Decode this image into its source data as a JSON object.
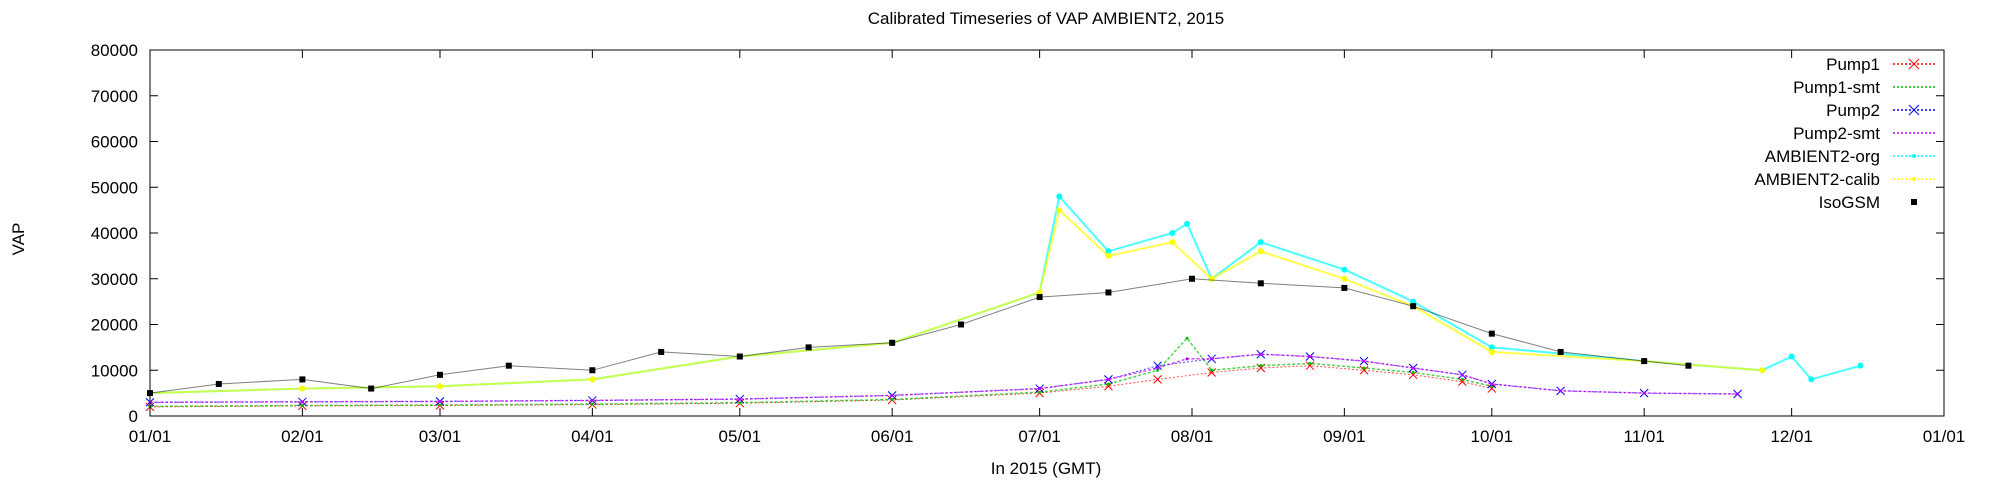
{
  "chart_data": {
    "type": "scatter",
    "title": "Calibrated Timeseries of VAP AMBIENT2, 2015",
    "xlabel": "In 2015 (GMT)",
    "ylabel": "VAP",
    "xlim": [
      "2015-01-01",
      "2016-01-01"
    ],
    "ylim": [
      0,
      80000
    ],
    "yticks": [
      0,
      10000,
      20000,
      30000,
      40000,
      50000,
      60000,
      70000,
      80000
    ],
    "xticks": [
      "2015-01-01",
      "2015-02-01",
      "2015-03-01",
      "2015-04-01",
      "2015-05-01",
      "2015-06-01",
      "2015-07-01",
      "2015-08-01",
      "2015-09-01",
      "2015-10-01",
      "2015-11-01",
      "2015-12-01",
      "2016-01-01"
    ],
    "xtick_labels": [
      "01/01",
      "02/01",
      "03/01",
      "04/01",
      "05/01",
      "06/01",
      "07/01",
      "08/01",
      "09/01",
      "10/01",
      "11/01",
      "12/01",
      "01/01"
    ],
    "grid": false,
    "legend_position": "top-right",
    "series": [
      {
        "name": "Pump1",
        "color": "#ff0000",
        "marker": "x",
        "x": [
          "2015-01-01",
          "2015-02-01",
          "2015-03-01",
          "2015-04-01",
          "2015-05-01",
          "2015-06-01",
          "2015-07-01",
          "2015-07-15",
          "2015-07-25",
          "2015-08-05",
          "2015-08-15",
          "2015-08-25",
          "2015-09-05",
          "2015-09-15",
          "2015-09-25",
          "2015-10-01"
        ],
        "y": [
          2000,
          2200,
          2300,
          2500,
          2800,
          3500,
          5000,
          6500,
          8000,
          9500,
          10500,
          11000,
          10000,
          9000,
          7500,
          6000
        ]
      },
      {
        "name": "Pump1-smt",
        "color": "#00c000",
        "marker": "line",
        "x": [
          "2015-01-01",
          "2015-02-01",
          "2015-03-01",
          "2015-04-01",
          "2015-05-01",
          "2015-06-01",
          "2015-07-01",
          "2015-07-15",
          "2015-07-25",
          "2015-07-31",
          "2015-08-05",
          "2015-08-15",
          "2015-08-25",
          "2015-09-05",
          "2015-09-15",
          "2015-09-25",
          "2015-10-01"
        ],
        "y": [
          2100,
          2300,
          2400,
          2600,
          2900,
          3600,
          5200,
          7000,
          10000,
          17000,
          10000,
          11000,
          11500,
          10500,
          9500,
          8000,
          6500
        ]
      },
      {
        "name": "Pump2",
        "color": "#0000ff",
        "marker": "x",
        "x": [
          "2015-01-01",
          "2015-02-01",
          "2015-03-01",
          "2015-04-01",
          "2015-05-01",
          "2015-06-01",
          "2015-07-01",
          "2015-07-15",
          "2015-07-25",
          "2015-08-05",
          "2015-08-15",
          "2015-08-25",
          "2015-09-05",
          "2015-09-15",
          "2015-09-25",
          "2015-10-01",
          "2015-10-15",
          "2015-11-01",
          "2015-11-20"
        ],
        "y": [
          3000,
          3100,
          3200,
          3400,
          3700,
          4500,
          6000,
          8000,
          11000,
          12500,
          13500,
          13000,
          12000,
          10500,
          9000,
          7000,
          5500,
          5000,
          4800
        ]
      },
      {
        "name": "Pump2-smt",
        "color": "#c000ff",
        "marker": "line",
        "x": [
          "2015-01-01",
          "2015-02-01",
          "2015-03-01",
          "2015-04-01",
          "2015-05-01",
          "2015-06-01",
          "2015-07-01",
          "2015-07-15",
          "2015-07-25",
          "2015-07-31",
          "2015-08-05",
          "2015-08-15",
          "2015-08-25",
          "2015-09-05",
          "2015-09-15",
          "2015-09-25",
          "2015-10-01",
          "2015-10-15",
          "2015-11-01",
          "2015-11-20"
        ],
        "y": [
          3000,
          3100,
          3200,
          3400,
          3700,
          4500,
          6000,
          8000,
          10500,
          12500,
          12500,
          13500,
          13000,
          12000,
          10500,
          9000,
          7000,
          5500,
          5000,
          4800
        ]
      },
      {
        "name": "AMBIENT2-org",
        "color": "#00ffff",
        "marker": "dot",
        "x": [
          "2015-01-01",
          "2015-02-01",
          "2015-03-01",
          "2015-04-01",
          "2015-05-01",
          "2015-06-01",
          "2015-07-01",
          "2015-07-05",
          "2015-07-15",
          "2015-07-28",
          "2015-07-31",
          "2015-08-05",
          "2015-08-15",
          "2015-09-01",
          "2015-09-15",
          "2015-10-01",
          "2015-11-01",
          "2015-11-25",
          "2015-12-01",
          "2015-12-05",
          "2015-12-15"
        ],
        "y": [
          5000,
          6000,
          6500,
          8000,
          13000,
          16000,
          27000,
          48000,
          36000,
          40000,
          42000,
          30000,
          38000,
          32000,
          25000,
          15000,
          12000,
          10000,
          13000,
          8000,
          11000
        ]
      },
      {
        "name": "AMBIENT2-calib",
        "color": "#ffff00",
        "marker": "dot",
        "x": [
          "2015-01-01",
          "2015-02-01",
          "2015-03-01",
          "2015-04-01",
          "2015-05-01",
          "2015-06-01",
          "2015-07-01",
          "2015-07-05",
          "2015-07-15",
          "2015-07-28",
          "2015-08-05",
          "2015-08-15",
          "2015-09-01",
          "2015-09-15",
          "2015-10-01",
          "2015-11-01",
          "2015-11-25"
        ],
        "y": [
          5000,
          6000,
          6500,
          8000,
          13000,
          16000,
          27000,
          45000,
          35000,
          38000,
          30000,
          36000,
          30000,
          24000,
          14000,
          12000,
          10000
        ]
      },
      {
        "name": "IsoGSM",
        "color": "#000000",
        "marker": "square",
        "x": [
          "2015-01-01",
          "2015-01-15",
          "2015-02-01",
          "2015-02-15",
          "2015-03-01",
          "2015-03-15",
          "2015-04-01",
          "2015-04-15",
          "2015-05-01",
          "2015-05-15",
          "2015-06-01",
          "2015-06-15",
          "2015-07-01",
          "2015-07-15",
          "2015-08-01",
          "2015-08-15",
          "2015-09-01",
          "2015-09-15",
          "2015-10-01",
          "2015-10-15",
          "2015-11-01",
          "2015-11-10"
        ],
        "y": [
          5000,
          7000,
          8000,
          6000,
          9000,
          11000,
          10000,
          14000,
          13000,
          15000,
          16000,
          20000,
          26000,
          27000,
          30000,
          29000,
          28000,
          24000,
          18000,
          14000,
          12000,
          11000
        ]
      }
    ]
  }
}
